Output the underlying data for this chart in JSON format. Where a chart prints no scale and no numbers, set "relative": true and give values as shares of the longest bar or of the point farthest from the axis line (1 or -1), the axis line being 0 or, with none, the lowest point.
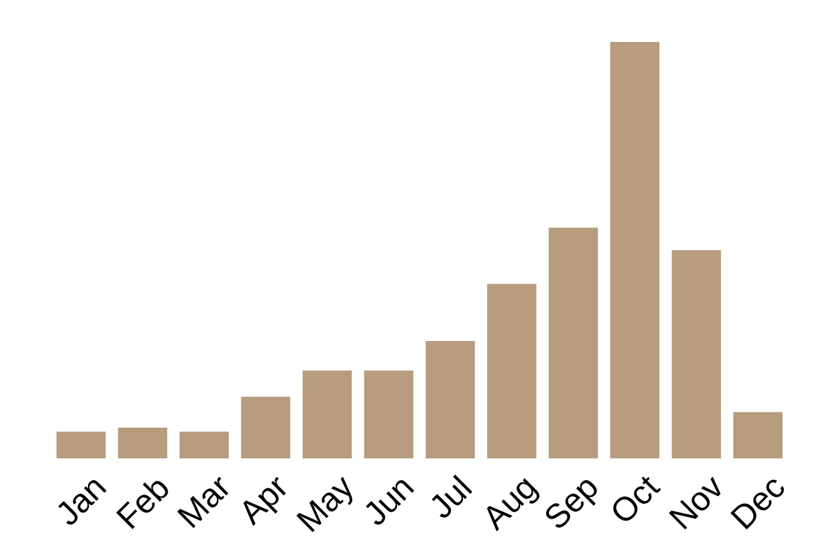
{
  "chart_data": {
    "type": "bar",
    "relative": true,
    "categories": [
      "Jan",
      "Feb",
      "Mar",
      "Apr",
      "May",
      "Jun",
      "Jul",
      "Aug",
      "Sep",
      "Oct",
      "Nov",
      "Dec"
    ],
    "values": [
      0.064,
      0.074,
      0.064,
      0.148,
      0.211,
      0.211,
      0.282,
      0.419,
      0.554,
      1,
      0.5,
      0.111
    ],
    "color": "#b79c7e"
  }
}
